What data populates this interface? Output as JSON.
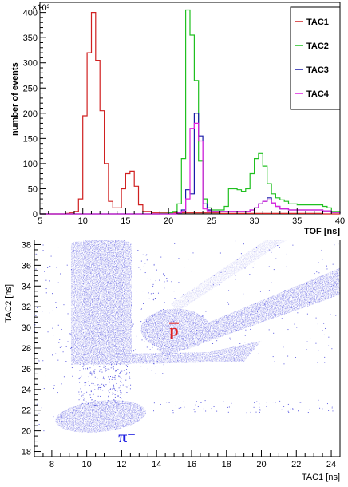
{
  "chart_data": [
    {
      "type": "line",
      "style": "step histogram",
      "multiplier_label": "×10³",
      "xlabel": "TOF [ns]",
      "ylabel": "number of events",
      "xlim": [
        5,
        40
      ],
      "ylim": [
        0,
        420
      ],
      "x_ticks": [
        5,
        10,
        15,
        20,
        25,
        30,
        35,
        40
      ],
      "y_ticks": [
        0,
        50,
        100,
        150,
        200,
        250,
        300,
        350,
        400
      ],
      "grid": false,
      "legend_position": "top-right",
      "series": [
        {
          "name": "TAC1",
          "color": "#d02020",
          "x": [
            5,
            7,
            8,
            8.5,
            9,
            9.5,
            10,
            10.5,
            11,
            11.5,
            12,
            12.5,
            13,
            13.5,
            14,
            14.5,
            15,
            15.5,
            16,
            16.5,
            17,
            18,
            20,
            22,
            24,
            26,
            28,
            30,
            32,
            34,
            36,
            38,
            40
          ],
          "values": [
            0,
            0,
            1,
            2,
            5,
            30,
            195,
            320,
            400,
            305,
            205,
            100,
            25,
            12,
            12,
            50,
            80,
            85,
            55,
            18,
            5,
            2,
            2,
            2,
            2,
            1,
            1,
            1,
            1,
            1,
            1,
            0,
            0
          ]
        },
        {
          "name": "TAC2",
          "color": "#20c020",
          "x": [
            5,
            10,
            15,
            19,
            20,
            20.5,
            21,
            21.5,
            22,
            22.5,
            23,
            23.5,
            24,
            24.5,
            25,
            26,
            26.5,
            27,
            27.5,
            28,
            28.5,
            29,
            29.5,
            30,
            30.5,
            31,
            31.5,
            32,
            32.5,
            33,
            33.5,
            34,
            35,
            36,
            37,
            38,
            38.5,
            39,
            40
          ],
          "values": [
            0,
            0,
            0,
            1,
            2,
            5,
            20,
            110,
            405,
            355,
            265,
            105,
            30,
            12,
            8,
            8,
            15,
            50,
            50,
            48,
            45,
            50,
            80,
            110,
            120,
            95,
            60,
            40,
            32,
            28,
            25,
            20,
            18,
            18,
            18,
            15,
            12,
            5,
            2
          ]
        },
        {
          "name": "TAC3",
          "color": "#1a1aa8",
          "x": [
            5,
            10,
            15,
            20,
            21,
            21.5,
            22,
            22.5,
            23,
            23.5,
            24,
            24.5,
            25,
            26,
            27,
            28,
            29,
            29.5,
            30,
            30.5,
            31,
            31.5,
            32,
            32.5,
            33,
            34,
            35,
            36,
            37,
            38,
            39,
            40
          ],
          "values": [
            0,
            0,
            0,
            0,
            2,
            8,
            48,
            40,
            200,
            155,
            20,
            8,
            5,
            5,
            5,
            5,
            5,
            8,
            12,
            20,
            25,
            32,
            22,
            15,
            10,
            8,
            8,
            8,
            8,
            6,
            3,
            1
          ]
        },
        {
          "name": "TAC4",
          "color": "#e020e0",
          "x": [
            5,
            10,
            15,
            20,
            21,
            21.5,
            22,
            22.5,
            23,
            23.5,
            24,
            24.5,
            25,
            26,
            27,
            28,
            29,
            29.5,
            30,
            30.5,
            31,
            31.5,
            32,
            32.5,
            33,
            34,
            35,
            36,
            37,
            38,
            39,
            40
          ],
          "values": [
            0,
            0,
            0,
            0,
            2,
            5,
            30,
            170,
            180,
            145,
            10,
            6,
            5,
            5,
            5,
            5,
            5,
            8,
            12,
            20,
            25,
            28,
            22,
            15,
            10,
            8,
            8,
            8,
            8,
            6,
            3,
            1
          ]
        }
      ]
    },
    {
      "type": "scatter",
      "style": "2D density",
      "xlabel": "TAC1 [ns]",
      "ylabel": "TAC2 [ns]",
      "xlim": [
        7,
        24.5
      ],
      "ylim": [
        17.5,
        38.5
      ],
      "x_ticks": [
        8,
        10,
        12,
        14,
        16,
        18,
        20,
        22,
        24
      ],
      "y_ticks": [
        18,
        20,
        22,
        24,
        26,
        28,
        30,
        32,
        34,
        36,
        38
      ],
      "color": "#5c5ce0",
      "grid": false,
      "annotations": [
        {
          "text": "p",
          "overbar": true,
          "x": 15,
          "y": 29.8,
          "color": "#e02020"
        },
        {
          "text": "π⁻",
          "x": 12.3,
          "y": 19.5,
          "color": "#1a1ae0"
        }
      ]
    }
  ]
}
